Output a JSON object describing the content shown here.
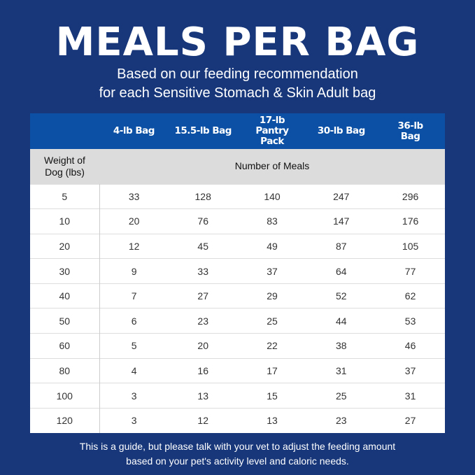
{
  "title": "MEALS PER BAG",
  "subtitle": [
    "Based on our feeding recommendation",
    "for each Sensitive Stomach & Skin Adult bag"
  ],
  "columns": [
    "",
    "4-lb Bag",
    "15.5-lb Bag",
    "17-lb Pantry Pack",
    "30-lb Bag",
    "36-lb Bag"
  ],
  "row_header": "Weight of Dog (lbs)",
  "group_header": "Number of Meals",
  "rows": [
    [
      "5",
      "33",
      "128",
      "140",
      "247",
      "296"
    ],
    [
      "10",
      "20",
      "76",
      "83",
      "147",
      "176"
    ],
    [
      "20",
      "12",
      "45",
      "49",
      "87",
      "105"
    ],
    [
      "30",
      "9",
      "33",
      "37",
      "64",
      "77"
    ],
    [
      "40",
      "7",
      "27",
      "29",
      "52",
      "62"
    ],
    [
      "50",
      "6",
      "23",
      "25",
      "44",
      "53"
    ],
    [
      "60",
      "5",
      "20",
      "22",
      "38",
      "46"
    ],
    [
      "80",
      "4",
      "16",
      "17",
      "31",
      "37"
    ],
    [
      "100",
      "3",
      "13",
      "15",
      "25",
      "31"
    ],
    [
      "120",
      "3",
      "12",
      "13",
      "23",
      "27"
    ]
  ],
  "footer": [
    "This is a guide, but please talk with your vet to adjust the feeding amount",
    "based on your pet's activity level and caloric needs."
  ],
  "colors": {
    "background": "#17377a",
    "header": "#0b50a4",
    "subheader": "#dcdcdc"
  }
}
